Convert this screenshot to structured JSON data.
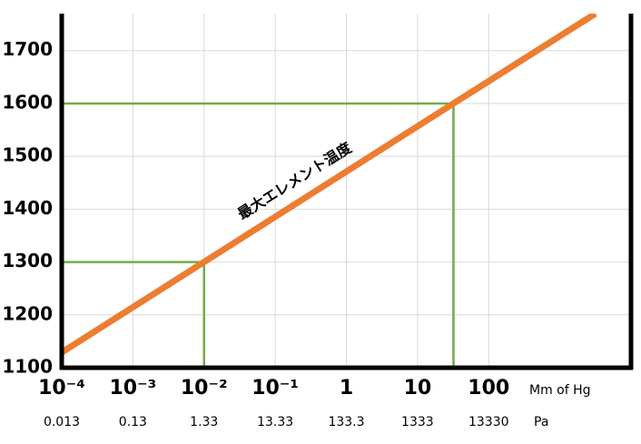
{
  "chart_data": {
    "type": "line",
    "log_x": true,
    "grid": true,
    "xlim": [
      0.0001,
      10000
    ],
    "ylim": [
      1100,
      1770
    ],
    "xticks": [
      {
        "value": 0.0001,
        "label": "10⁻⁴"
      },
      {
        "value": 0.001,
        "label": "10⁻³"
      },
      {
        "value": 0.01,
        "label": "10⁻²"
      },
      {
        "value": 0.1,
        "label": "10⁻¹"
      },
      1,
      10,
      100
    ],
    "pa_labels": [
      "0.013",
      "0.13",
      "1.33",
      "13.33",
      "133.3",
      "1333",
      "13330"
    ],
    "x_unit_label": "Mm of Hg",
    "pa_unit_label": "Pa",
    "yticks": [
      1100,
      1200,
      1300,
      1400,
      1500,
      1600,
      1700
    ],
    "series": [
      {
        "color": "#ed7d31",
        "x": [
          0.0001,
          0.01,
          32,
          3162
        ],
        "values": [
          1129,
          1300,
          1600,
          1770
        ]
      }
    ],
    "reference_color": "#70ad47",
    "reference_points": [
      {
        "x": 0.01,
        "y": 1300
      },
      {
        "x": 32,
        "y": 1600
      }
    ],
    "annotation": "最大エレメント温度"
  }
}
